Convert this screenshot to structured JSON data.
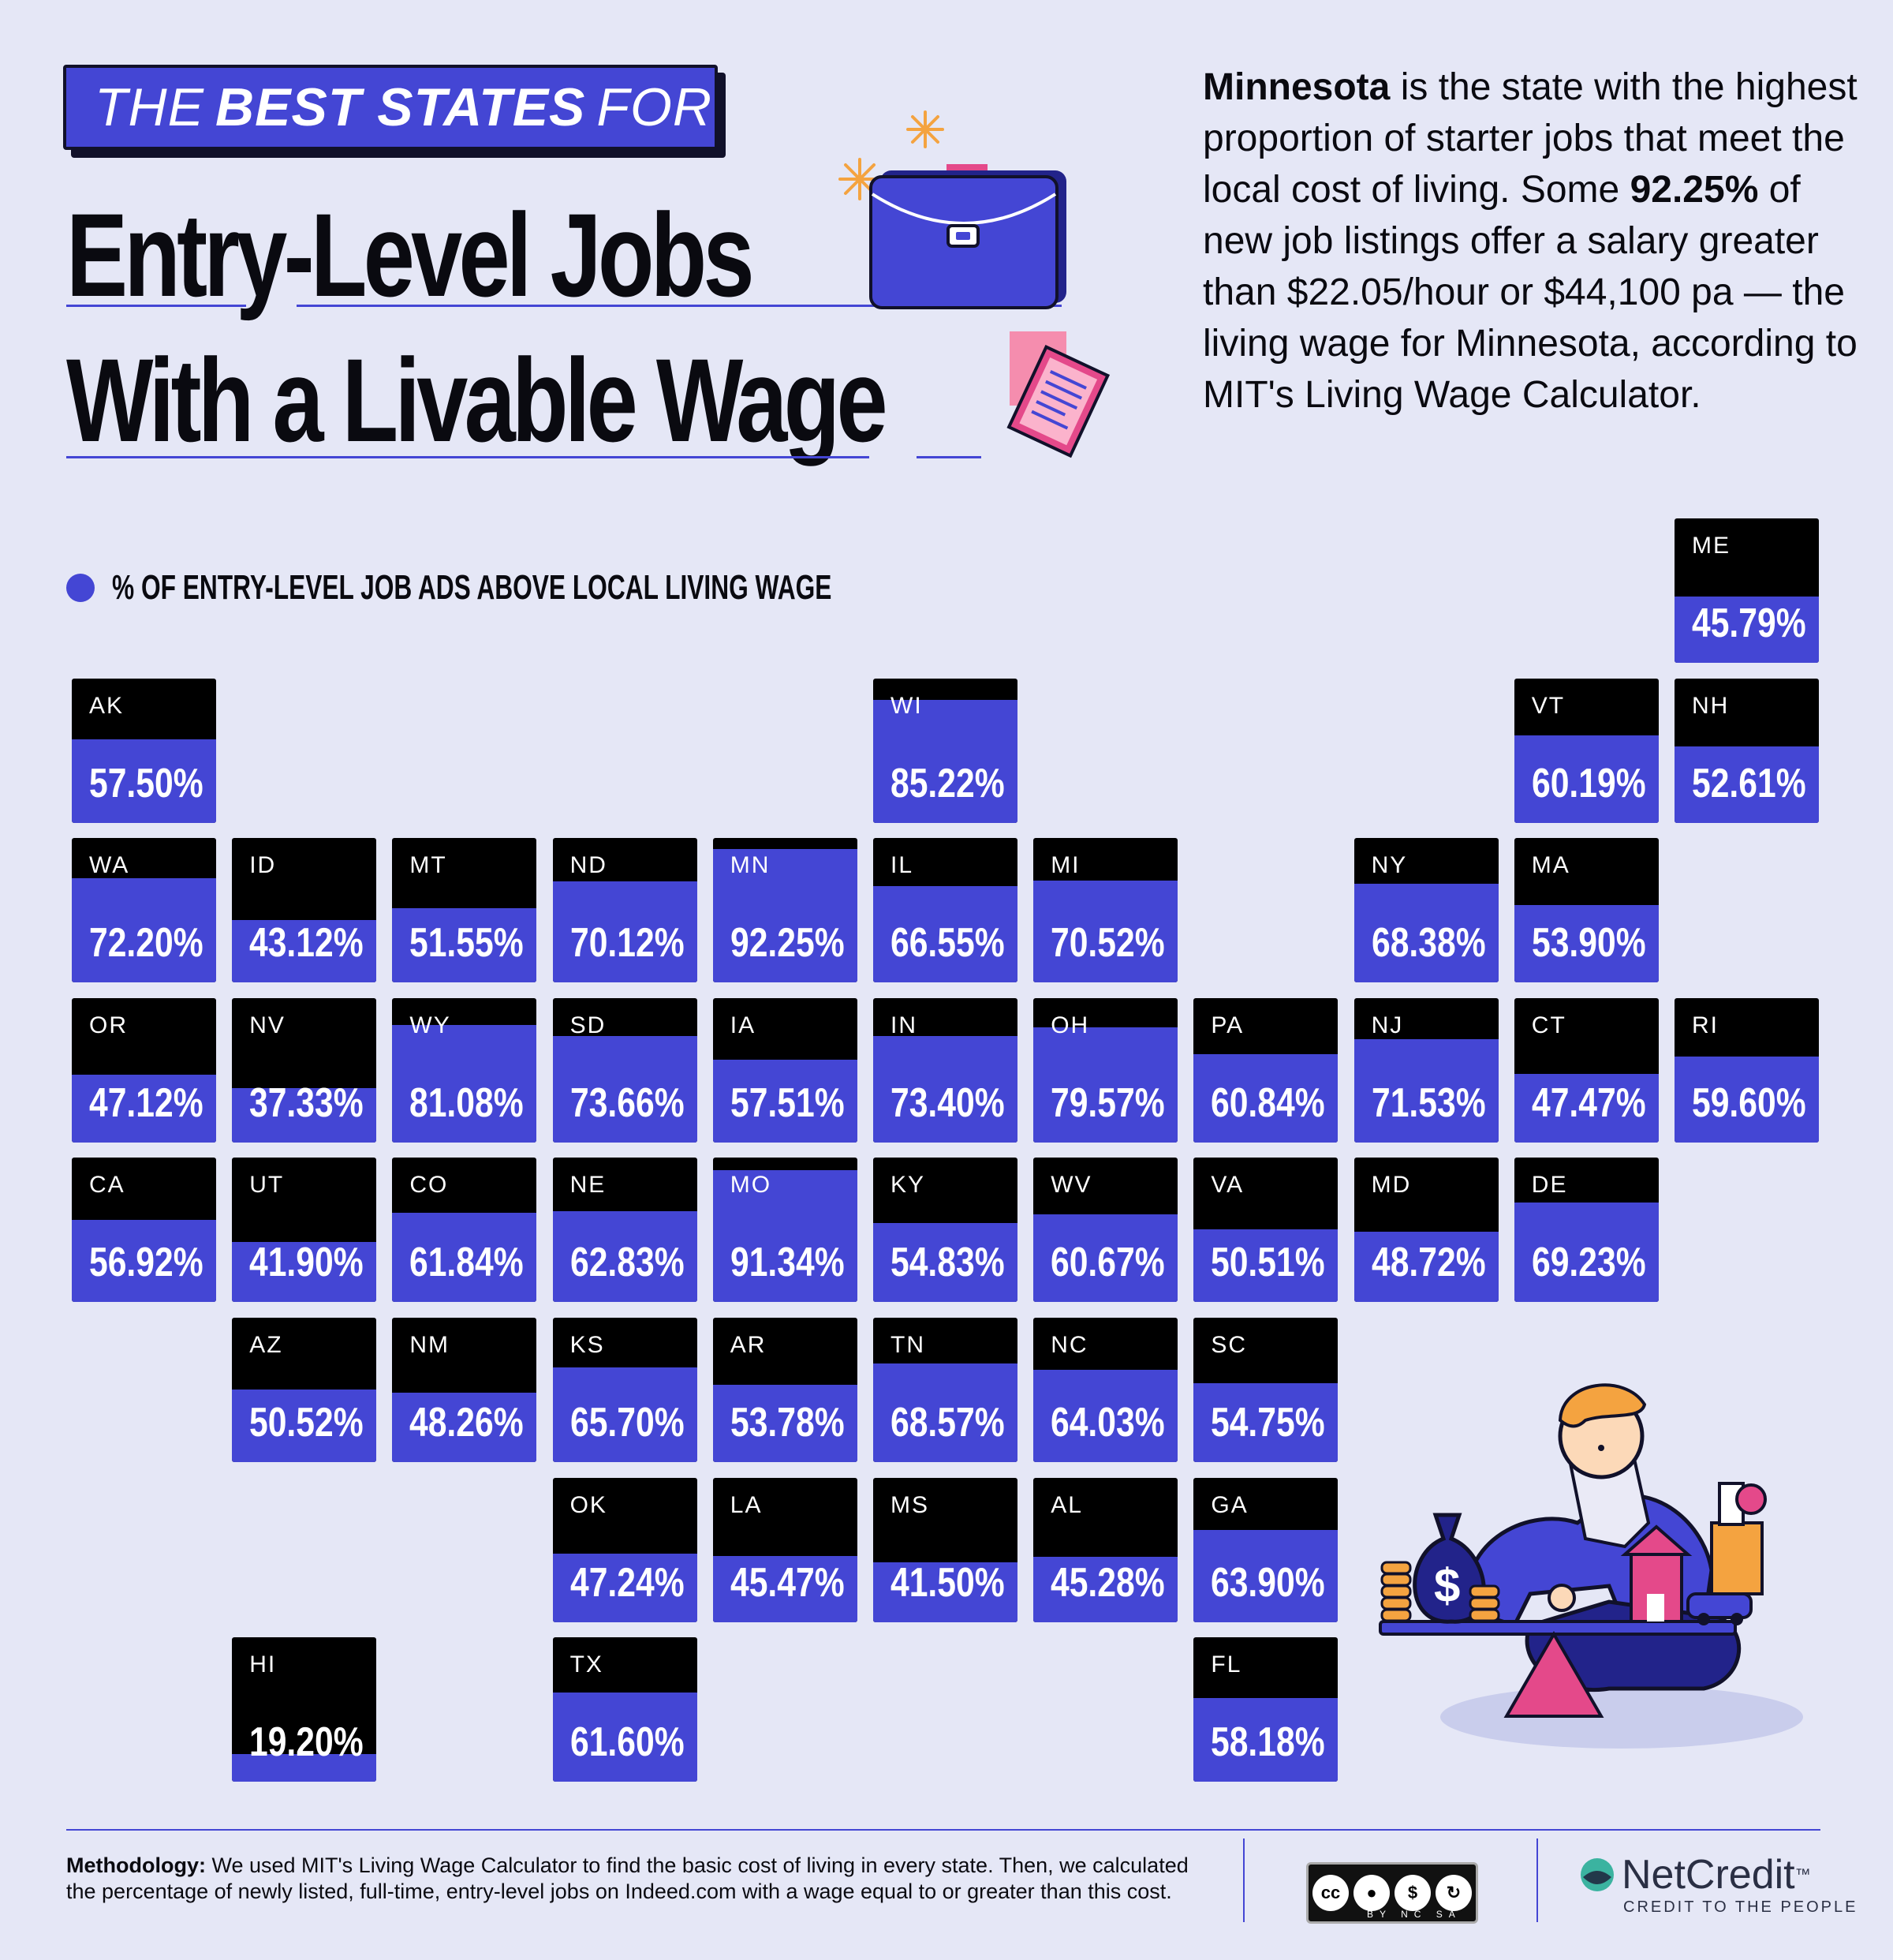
{
  "header": {
    "banner": {
      "pre": "THE",
      "bold": "BEST STATES",
      "post": "FOR"
    },
    "title_line1": "Entry-Level Jobs",
    "title_line2": "With a Livable Wage"
  },
  "intro": {
    "state": "Minnesota",
    "p1": " is the state with the highest proportion of starter jobs that meet the local cost of living. Some ",
    "pct": "92.25%",
    "p2": " of new job listings offer a salary greater than $22.05/hour or $44,100 pa — the living wage for Minnesota, according to MIT's Living Wage Calculator."
  },
  "legend": {
    "label": "% OF ENTRY-LEVEL JOB ADS ABOVE LOCAL LIVING WAGE",
    "color": "#4446d4"
  },
  "colors": {
    "accent": "#4446d4",
    "tile_base": "#000000",
    "background": "#e5e7f6",
    "pink": "#e4498a",
    "orange": "#f4a340"
  },
  "chart_data": {
    "type": "tile-map",
    "title": "THE BEST STATES FOR Entry-Level Jobs With a Livable Wage",
    "metric": "% OF ENTRY-LEVEL JOB ADS ABOVE LOCAL LIVING WAGE",
    "tiles": [
      {
        "state": "ME",
        "label": "45.79%",
        "value": 45.79,
        "row": 0,
        "col": 10
      },
      {
        "state": "AK",
        "label": "57.50%",
        "value": 57.5,
        "row": 1,
        "col": 0
      },
      {
        "state": "WI",
        "label": "85.22%",
        "value": 85.22,
        "row": 1,
        "col": 5
      },
      {
        "state": "VT",
        "label": "60.19%",
        "value": 60.19,
        "row": 1,
        "col": 9
      },
      {
        "state": "NH",
        "label": "52.61%",
        "value": 52.61,
        "row": 1,
        "col": 10
      },
      {
        "state": "WA",
        "label": "72.20%",
        "value": 72.2,
        "row": 2,
        "col": 0
      },
      {
        "state": "ID",
        "label": "43.12%",
        "value": 43.12,
        "row": 2,
        "col": 1
      },
      {
        "state": "MT",
        "label": "51.55%",
        "value": 51.55,
        "row": 2,
        "col": 2
      },
      {
        "state": "ND",
        "label": "70.12%",
        "value": 70.12,
        "row": 2,
        "col": 3
      },
      {
        "state": "MN",
        "label": "92.25%",
        "value": 92.25,
        "row": 2,
        "col": 4
      },
      {
        "state": "IL",
        "label": "66.55%",
        "value": 66.55,
        "row": 2,
        "col": 5
      },
      {
        "state": "MI",
        "label": "70.52%",
        "value": 70.52,
        "row": 2,
        "col": 6
      },
      {
        "state": "NY",
        "label": "68.38%",
        "value": 68.38,
        "row": 2,
        "col": 8
      },
      {
        "state": "MA",
        "label": "53.90%",
        "value": 53.9,
        "row": 2,
        "col": 9
      },
      {
        "state": "OR",
        "label": "47.12%",
        "value": 47.12,
        "row": 3,
        "col": 0
      },
      {
        "state": "NV",
        "label": "37.33%",
        "value": 37.33,
        "row": 3,
        "col": 1
      },
      {
        "state": "WY",
        "label": "81.08%",
        "value": 81.08,
        "row": 3,
        "col": 2
      },
      {
        "state": "SD",
        "label": "73.66%",
        "value": 73.66,
        "row": 3,
        "col": 3
      },
      {
        "state": "IA",
        "label": "57.51%",
        "value": 57.51,
        "row": 3,
        "col": 4
      },
      {
        "state": "IN",
        "label": "73.40%",
        "value": 73.4,
        "row": 3,
        "col": 5
      },
      {
        "state": "OH",
        "label": "79.57%",
        "value": 79.57,
        "row": 3,
        "col": 6
      },
      {
        "state": "PA",
        "label": "60.84%",
        "value": 60.84,
        "row": 3,
        "col": 7
      },
      {
        "state": "NJ",
        "label": "71.53%",
        "value": 71.53,
        "row": 3,
        "col": 8
      },
      {
        "state": "CT",
        "label": "47.47%",
        "value": 47.47,
        "row": 3,
        "col": 9
      },
      {
        "state": "RI",
        "label": "59.60%",
        "value": 59.6,
        "row": 3,
        "col": 10
      },
      {
        "state": "CA",
        "label": "56.92%",
        "value": 56.92,
        "row": 4,
        "col": 0
      },
      {
        "state": "UT",
        "label": "41.90%",
        "value": 41.9,
        "row": 4,
        "col": 1
      },
      {
        "state": "CO",
        "label": "61.84%",
        "value": 61.84,
        "row": 4,
        "col": 2
      },
      {
        "state": "NE",
        "label": "62.83%",
        "value": 62.83,
        "row": 4,
        "col": 3
      },
      {
        "state": "MO",
        "label": "91.34%",
        "value": 91.34,
        "row": 4,
        "col": 4
      },
      {
        "state": "KY",
        "label": "54.83%",
        "value": 54.83,
        "row": 4,
        "col": 5
      },
      {
        "state": "WV",
        "label": "60.67%",
        "value": 60.67,
        "row": 4,
        "col": 6
      },
      {
        "state": "VA",
        "label": "50.51%",
        "value": 50.51,
        "row": 4,
        "col": 7
      },
      {
        "state": "MD",
        "label": "48.72%",
        "value": 48.72,
        "row": 4,
        "col": 8
      },
      {
        "state": "DE",
        "label": "69.23%",
        "value": 69.23,
        "row": 4,
        "col": 9
      },
      {
        "state": "AZ",
        "label": "50.52%",
        "value": 50.52,
        "row": 5,
        "col": 1
      },
      {
        "state": "NM",
        "label": "48.26%",
        "value": 48.26,
        "row": 5,
        "col": 2
      },
      {
        "state": "KS",
        "label": "65.70%",
        "value": 65.7,
        "row": 5,
        "col": 3
      },
      {
        "state": "AR",
        "label": "53.78%",
        "value": 53.78,
        "row": 5,
        "col": 4
      },
      {
        "state": "TN",
        "label": "68.57%",
        "value": 68.57,
        "row": 5,
        "col": 5
      },
      {
        "state": "NC",
        "label": "64.03%",
        "value": 64.03,
        "row": 5,
        "col": 6
      },
      {
        "state": "SC",
        "label": "54.75%",
        "value": 54.75,
        "row": 5,
        "col": 7
      },
      {
        "state": "OK",
        "label": "47.24%",
        "value": 47.24,
        "row": 6,
        "col": 3
      },
      {
        "state": "LA",
        "label": "45.47%",
        "value": 45.47,
        "row": 6,
        "col": 4
      },
      {
        "state": "MS",
        "label": "41.50%",
        "value": 41.5,
        "row": 6,
        "col": 5
      },
      {
        "state": "AL",
        "label": "45.28%",
        "value": 45.28,
        "row": 6,
        "col": 6
      },
      {
        "state": "GA",
        "label": "63.90%",
        "value": 63.9,
        "row": 6,
        "col": 7
      },
      {
        "state": "HI",
        "label": "19.20%",
        "value": 19.2,
        "row": 7,
        "col": 1
      },
      {
        "state": "TX",
        "label": "61.60%",
        "value": 61.6,
        "row": 7,
        "col": 3
      },
      {
        "state": "FL",
        "label": "58.18%",
        "value": 58.18,
        "row": 7,
        "col": 7
      }
    ]
  },
  "footer": {
    "method_label": "Methodology:",
    "method_text": " We used MIT's Living Wage Calculator to find the basic cost of living in every state. Then, we calculated the percentage of newly listed, full-time, entry-level jobs on Indeed.com with a wage equal to or greater than this cost.",
    "license": "BY NC SA",
    "license_cc": "cc",
    "brand": "NetCredit",
    "brand_tm": "™",
    "tagline": "CREDIT TO THE PEOPLE"
  }
}
